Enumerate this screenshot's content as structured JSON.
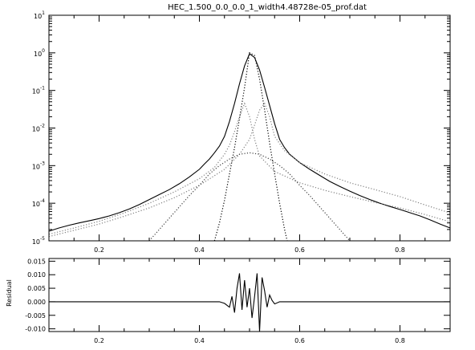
{
  "chart_data": [
    {
      "type": "line",
      "title": "HEC_1.500_0.0_0.0_1_width4.48728e-05_prof.dat",
      "xlabel": "",
      "ylabel": "",
      "xlim": [
        0.1,
        0.9
      ],
      "ylim": [
        1e-05,
        10
      ],
      "yscale": "log",
      "grid": false,
      "x_tick_labels": [
        "0.2",
        "0.4",
        "0.6",
        "0.8"
      ],
      "x_ticks": [
        0.2,
        0.4,
        0.6,
        0.8
      ],
      "y_ticks": [
        1e-05,
        0.0001,
        0.001,
        0.01,
        0.1,
        1,
        10
      ],
      "y_tick_labels": [
        {
          "base": "10",
          "exp": "-5"
        },
        {
          "base": "10",
          "exp": "-4"
        },
        {
          "base": "10",
          "exp": "-3"
        },
        {
          "base": "10",
          "exp": "-2"
        },
        {
          "base": "10",
          "exp": "-1"
        },
        {
          "base": "10",
          "exp": "0"
        },
        {
          "base": "10",
          "exp": "1"
        }
      ],
      "series": [
        {
          "style": "solid",
          "color": "#000000",
          "points": [
            [
              0.1,
              1.8e-05
            ],
            [
              0.12,
              2.2e-05
            ],
            [
              0.14,
              2.6e-05
            ],
            [
              0.16,
              3e-05
            ],
            [
              0.18,
              3.4e-05
            ],
            [
              0.2,
              3.9e-05
            ],
            [
              0.22,
              4.6e-05
            ],
            [
              0.24,
              5.6e-05
            ],
            [
              0.26,
              7e-05
            ],
            [
              0.28,
              9.2e-05
            ],
            [
              0.3,
              0.000125
            ],
            [
              0.32,
              0.00017
            ],
            [
              0.34,
              0.00023
            ],
            [
              0.36,
              0.00033
            ],
            [
              0.38,
              0.0005
            ],
            [
              0.4,
              0.0008
            ],
            [
              0.41,
              0.0011
            ],
            [
              0.42,
              0.0015
            ],
            [
              0.43,
              0.0022
            ],
            [
              0.44,
              0.0033
            ],
            [
              0.45,
              0.006
            ],
            [
              0.46,
              0.015
            ],
            [
              0.47,
              0.045
            ],
            [
              0.48,
              0.15
            ],
            [
              0.49,
              0.45
            ],
            [
              0.5,
              0.95
            ],
            [
              0.51,
              0.75
            ],
            [
              0.52,
              0.35
            ],
            [
              0.53,
              0.12
            ],
            [
              0.54,
              0.04
            ],
            [
              0.55,
              0.013
            ],
            [
              0.56,
              0.005
            ],
            [
              0.57,
              0.003
            ],
            [
              0.58,
              0.002
            ],
            [
              0.6,
              0.0012
            ],
            [
              0.62,
              0.0008
            ],
            [
              0.64,
              0.00055
            ],
            [
              0.66,
              0.00038
            ],
            [
              0.68,
              0.00028
            ],
            [
              0.7,
              0.00021
            ],
            [
              0.72,
              0.00016
            ],
            [
              0.74,
              0.000125
            ],
            [
              0.76,
              0.0001
            ],
            [
              0.78,
              8.2e-05
            ],
            [
              0.8,
              6.8e-05
            ],
            [
              0.82,
              5.6e-05
            ],
            [
              0.84,
              4.6e-05
            ],
            [
              0.86,
              3.6e-05
            ],
            [
              0.88,
              2.8e-05
            ],
            [
              0.9,
              2.2e-05
            ]
          ]
        },
        {
          "style": "dotted",
          "color": "#000000",
          "points": [
            [
              0.43,
              1e-05
            ],
            [
              0.44,
              3e-05
            ],
            [
              0.45,
              0.00012
            ],
            [
              0.46,
              0.0006
            ],
            [
              0.47,
              0.003
            ],
            [
              0.48,
              0.018
            ],
            [
              0.49,
              0.12
            ],
            [
              0.5,
              1.0
            ],
            [
              0.51,
              0.85
            ],
            [
              0.52,
              0.2
            ],
            [
              0.53,
              0.03
            ],
            [
              0.54,
              0.004
            ],
            [
              0.55,
              0.0006
            ],
            [
              0.56,
              0.0001
            ],
            [
              0.57,
              2e-05
            ],
            [
              0.575,
              1e-05
            ]
          ]
        },
        {
          "style": "dotted",
          "color": "#808080",
          "points": [
            [
              0.1,
              1.5e-05
            ],
            [
              0.15,
              2.2e-05
            ],
            [
              0.2,
              3.3e-05
            ],
            [
              0.25,
              5.5e-05
            ],
            [
              0.3,
              0.0001
            ],
            [
              0.35,
              0.0002
            ],
            [
              0.4,
              0.00045
            ],
            [
              0.43,
              0.0009
            ],
            [
              0.45,
              0.002
            ],
            [
              0.46,
              0.0035
            ],
            [
              0.47,
              0.008
            ],
            [
              0.48,
              0.02
            ],
            [
              0.49,
              0.045
            ],
            [
              0.5,
              0.02
            ],
            [
              0.51,
              0.005
            ],
            [
              0.52,
              0.0018
            ],
            [
              0.55,
              0.0007
            ],
            [
              0.6,
              0.00035
            ],
            [
              0.65,
              0.00022
            ],
            [
              0.7,
              0.00015
            ],
            [
              0.75,
              0.000105
            ],
            [
              0.8,
              7.5e-05
            ],
            [
              0.85,
              5e-05
            ],
            [
              0.9,
              3.2e-05
            ]
          ]
        },
        {
          "style": "dotted",
          "color": "#808080",
          "points": [
            [
              0.1,
              1.3e-05
            ],
            [
              0.15,
              1.9e-05
            ],
            [
              0.2,
              2.8e-05
            ],
            [
              0.25,
              4.5e-05
            ],
            [
              0.3,
              7.5e-05
            ],
            [
              0.35,
              0.00014
            ],
            [
              0.4,
              0.0003
            ],
            [
              0.45,
              0.0008
            ],
            [
              0.48,
              0.002
            ],
            [
              0.5,
              0.005
            ],
            [
              0.51,
              0.012
            ],
            [
              0.52,
              0.03
            ],
            [
              0.53,
              0.045
            ],
            [
              0.54,
              0.02
            ],
            [
              0.55,
              0.006
            ],
            [
              0.57,
              0.0025
            ],
            [
              0.6,
              0.0012
            ],
            [
              0.65,
              0.0006
            ],
            [
              0.7,
              0.00035
            ],
            [
              0.75,
              0.00023
            ],
            [
              0.8,
              0.00015
            ],
            [
              0.85,
              9e-05
            ],
            [
              0.9,
              5.5e-05
            ]
          ]
        },
        {
          "style": "dotted",
          "color": "#404040",
          "points": [
            [
              0.3,
              1e-05
            ],
            [
              0.32,
              2e-05
            ],
            [
              0.34,
              4e-05
            ],
            [
              0.36,
              8e-05
            ],
            [
              0.38,
              0.00016
            ],
            [
              0.4,
              0.0003
            ],
            [
              0.42,
              0.0006
            ],
            [
              0.44,
              0.001
            ],
            [
              0.46,
              0.0015
            ],
            [
              0.48,
              0.002
            ],
            [
              0.5,
              0.0022
            ],
            [
              0.52,
              0.002
            ],
            [
              0.54,
              0.0015
            ],
            [
              0.56,
              0.001
            ],
            [
              0.58,
              0.0006
            ],
            [
              0.6,
              0.0003
            ],
            [
              0.62,
              0.00016
            ],
            [
              0.64,
              8e-05
            ],
            [
              0.66,
              4e-05
            ],
            [
              0.68,
              2e-05
            ],
            [
              0.7,
              1e-05
            ]
          ]
        }
      ]
    },
    {
      "type": "line",
      "title": "",
      "xlabel": "",
      "ylabel": "Residual",
      "xlim": [
        0.1,
        0.9
      ],
      "ylim": [
        -0.011,
        0.016
      ],
      "grid": false,
      "x_ticks": [
        0.2,
        0.4,
        0.6,
        0.8
      ],
      "x_tick_labels": [
        "0.2",
        "0.4",
        "0.6",
        "0.8"
      ],
      "y_ticks": [
        -0.01,
        -0.005,
        0.0,
        0.005,
        0.01,
        0.015
      ],
      "y_tick_labels": [
        "-0.010",
        "-0.005",
        "0.000",
        "0.005",
        "0.010",
        "0.015"
      ],
      "series": [
        {
          "style": "solid",
          "color": "#000000",
          "points": [
            [
              0.1,
              0.0
            ],
            [
              0.44,
              0.0
            ],
            [
              0.45,
              -0.0006
            ],
            [
              0.46,
              -0.002
            ],
            [
              0.465,
              0.002
            ],
            [
              0.47,
              -0.004
            ],
            [
              0.475,
              0.005
            ],
            [
              0.48,
              0.0105
            ],
            [
              0.485,
              -0.003
            ],
            [
              0.49,
              0.008
            ],
            [
              0.495,
              -0.002
            ],
            [
              0.5,
              0.005
            ],
            [
              0.505,
              -0.006
            ],
            [
              0.51,
              0.002
            ],
            [
              0.515,
              0.0105
            ],
            [
              0.52,
              -0.011
            ],
            [
              0.525,
              0.009
            ],
            [
              0.53,
              0.004
            ],
            [
              0.535,
              -0.002
            ],
            [
              0.54,
              0.0025
            ],
            [
              0.545,
              0.0005
            ],
            [
              0.55,
              -0.0008
            ],
            [
              0.56,
              0.0
            ],
            [
              0.9,
              0.0
            ]
          ]
        }
      ]
    }
  ]
}
